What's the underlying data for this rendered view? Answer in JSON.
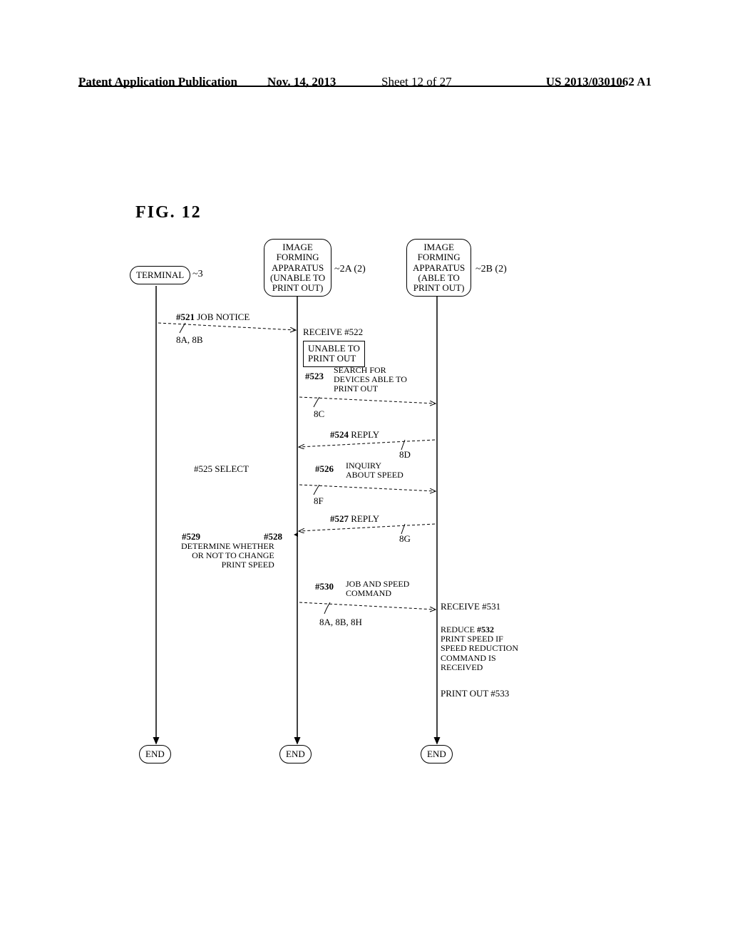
{
  "header": {
    "publication": "Patent Application Publication",
    "date": "Nov. 14, 2013",
    "sheet": "Sheet 12 of 27",
    "patent_number": "US 2013/0301062 A1"
  },
  "figure_label": "FIG. 12",
  "nodes": {
    "terminal": "TERMINAL",
    "terminal_ref": "3",
    "apparatus_a": "IMAGE\nFORMING\nAPPARATUS\n(UNABLE TO\nPRINT OUT)",
    "apparatus_a_ref": "2A (2)",
    "apparatus_b": "IMAGE\nFORMING\nAPPARATUS\n(ABLE TO\nPRINT OUT)",
    "apparatus_b_ref": "2B (2)",
    "end": "END"
  },
  "steps": {
    "s521": "#521",
    "s521_text": "JOB NOTICE",
    "s521_ref": "8A, 8B",
    "s522": "RECEIVE #522",
    "unable_box": "UNABLE TO\nPRINT OUT",
    "s523": "#523",
    "s523_text": "SEARCH FOR\nDEVICES ABLE TO\nPRINT OUT",
    "s523_ref": "8C",
    "s524": "#524",
    "s524_text": "REPLY",
    "s524_ref": "8D",
    "s525": "#525 SELECT",
    "s526": "#526",
    "s526_text": "INQUIRY\nABOUT SPEED",
    "s526_ref": "8F",
    "s527": "#527",
    "s527_text": "REPLY",
    "s527_ref": "8G",
    "s528": "#528",
    "s529": "#529",
    "s529_text": "DETERMINE WHETHER\nOR NOT TO CHANGE\nPRINT SPEED",
    "s530": "#530",
    "s530_text": "JOB AND SPEED\nCOMMAND",
    "s530_ref": "8A, 8B, 8H",
    "s531": "RECEIVE #531",
    "s532": "#532",
    "s532_text": "REDUCE\nPRINT SPEED IF\nSPEED REDUCTION\nCOMMAND IS\nRECEIVED",
    "s533": "PRINT OUT #533"
  },
  "style": {
    "text_color": "#000000",
    "bg_color": "#ffffff",
    "line_color": "#000000",
    "dash": "4 3"
  }
}
